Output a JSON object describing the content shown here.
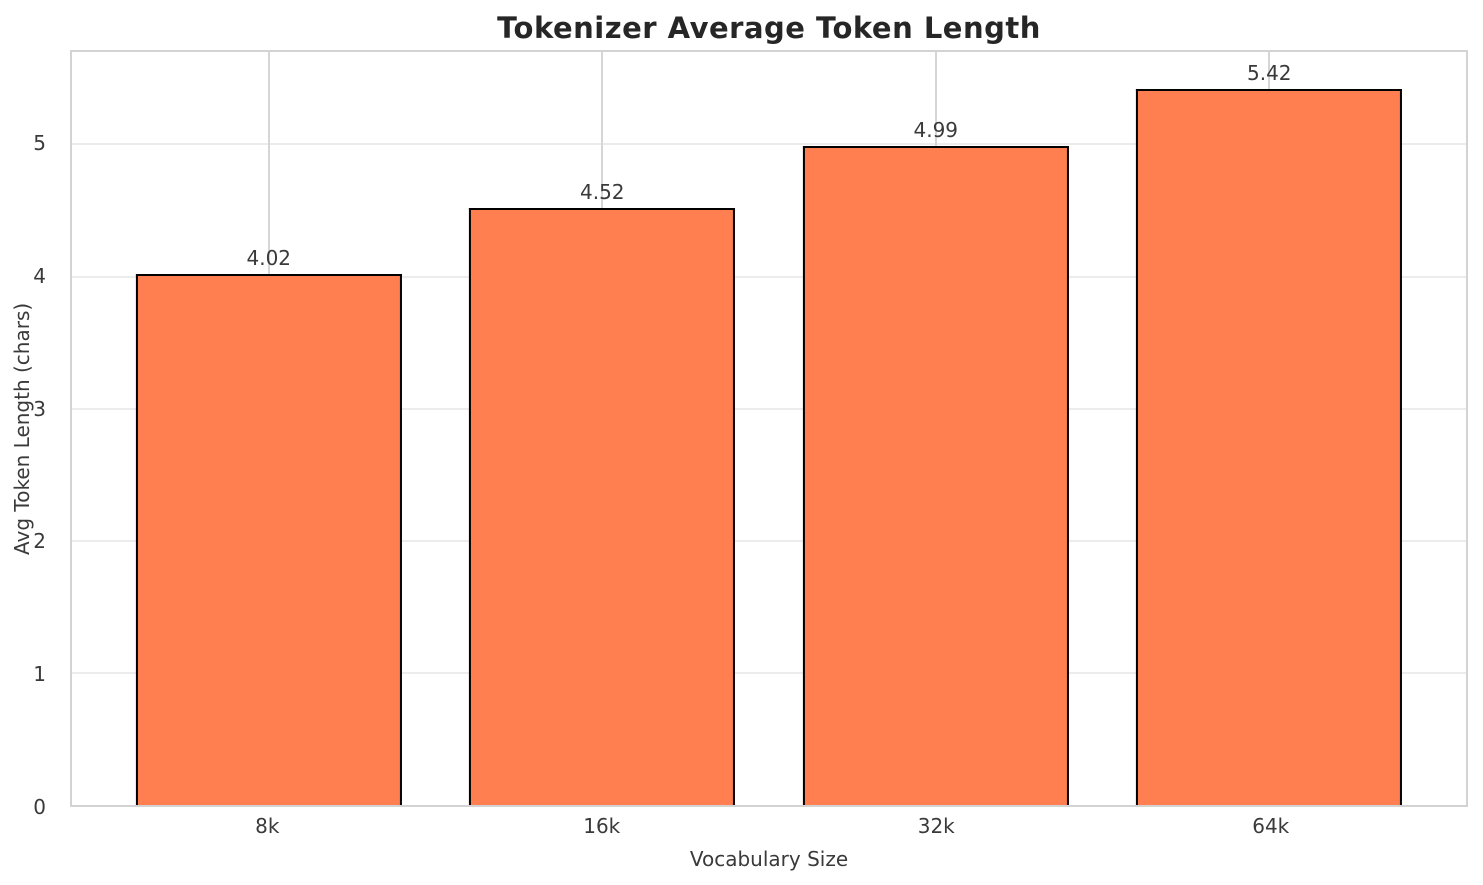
{
  "chart_data": {
    "type": "bar",
    "title": "Tokenizer Average Token Length",
    "xlabel": "Vocabulary Size",
    "ylabel": "Avg Token Length (chars)",
    "categories": [
      "8k",
      "16k",
      "32k",
      "64k"
    ],
    "values": [
      4.02,
      4.52,
      4.99,
      5.42
    ],
    "value_labels": [
      "4.02",
      "4.52",
      "4.99",
      "5.42"
    ],
    "yticks": [
      0,
      1,
      2,
      3,
      4,
      5
    ],
    "ylim": [
      0,
      5.7
    ],
    "bar_width_fraction": 0.8,
    "grid": "on",
    "legend": "none",
    "colors": {
      "bar_fill": "#FF7F50",
      "bar_edge": "#000000",
      "horizontal_gridline": "#ececec",
      "vertical_gridline": "#d6d6d6",
      "spine": "#d3d3d3",
      "title_text": "#262626",
      "tick_text": "#3a3a3a",
      "background": "#ffffff"
    }
  }
}
